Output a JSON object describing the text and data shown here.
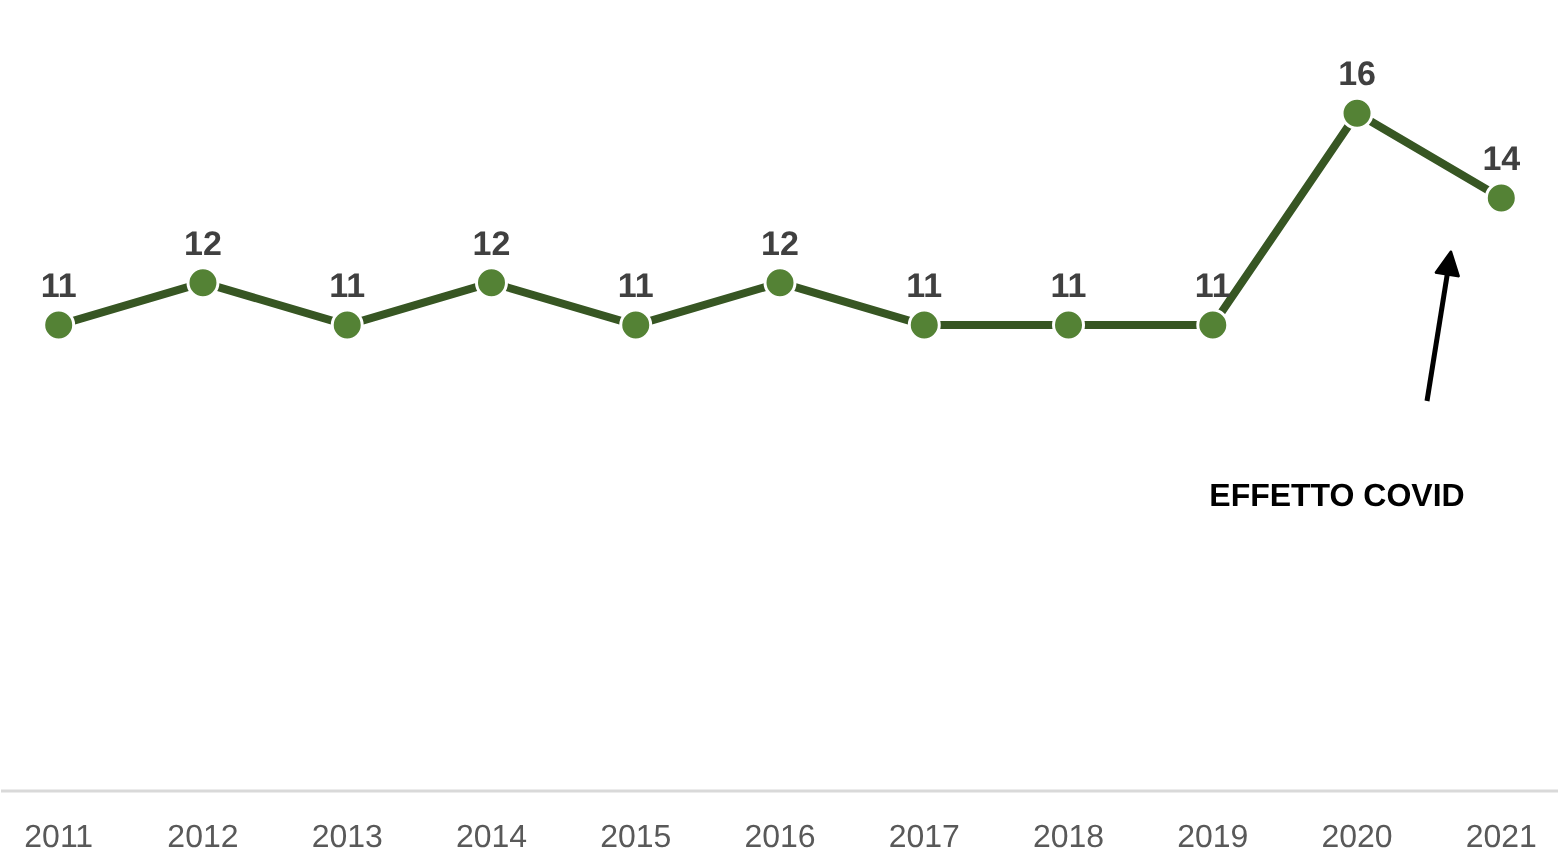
{
  "chart_data": {
    "type": "line",
    "categories": [
      "2011",
      "2012",
      "2013",
      "2014",
      "2015",
      "2016",
      "2017",
      "2018",
      "2019",
      "2020",
      "2021"
    ],
    "series": [
      {
        "color": "#375623",
        "colors": [
          "#548235",
          "#548235",
          "#548235",
          "#548235",
          "#548235",
          "#548235",
          "#548235",
          "#548235",
          "#548235",
          "#548235",
          "#548235"
        ],
        "values": [
          11,
          12,
          11,
          12,
          11,
          12,
          11,
          11,
          11,
          16,
          14
        ]
      }
    ],
    "tick_labels": "x",
    "data_labels": true,
    "marker": "circle",
    "line_style": "solid",
    "grid": false,
    "annotations": [
      "EFFETTO COVID"
    ]
  }
}
